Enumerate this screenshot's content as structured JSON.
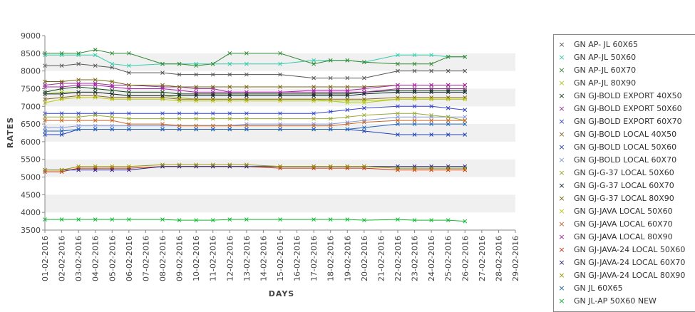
{
  "chart_data": {
    "type": "line",
    "xlabel": "DAYS",
    "ylabel": "RATES",
    "ylim": [
      3500,
      9000
    ],
    "yticks": [
      3500,
      4000,
      4500,
      5000,
      5500,
      6000,
      6500,
      7000,
      7500,
      8000,
      8500,
      9000
    ],
    "legend_position": "right",
    "grid": "alternating horizontal bands",
    "categories": [
      "01-02-2016",
      "02-02-2016",
      "03-02-2016",
      "04-02-2016",
      "05-02-2016",
      "06-02-2016",
      "07-02-2016",
      "08-02-2016",
      "09-02-2016",
      "10-02-2016",
      "11-02-2016",
      "12-02-2016",
      "13-02-2016",
      "14-02-2016",
      "15-02-2016",
      "16-02-2016",
      "17-02-2016",
      "18-02-2016",
      "19-02-2016",
      "20-02-2016",
      "21-02-2016",
      "22-02-2016",
      "23-02-2016",
      "24-02-2016",
      "25-02-2016",
      "26-02-2016",
      "27-02-2016",
      "28-02-2016",
      "29-02-2016"
    ],
    "series": [
      {
        "name": "GN AP- JL 60X65",
        "color": "#555555",
        "values": [
          8150,
          8150,
          8200,
          8150,
          8100,
          7950,
          null,
          7950,
          7900,
          7900,
          7900,
          7900,
          7900,
          null,
          7900,
          null,
          7800,
          7800,
          7800,
          7800,
          null,
          8000,
          8000,
          8000,
          8000,
          8000,
          null,
          null,
          null
        ]
      },
      {
        "name": "GN AP-JL 50X60",
        "color": "#33ccaa",
        "values": [
          8450,
          8450,
          8450,
          8450,
          8200,
          8150,
          null,
          8200,
          8200,
          8200,
          8200,
          8200,
          8200,
          null,
          8200,
          null,
          8300,
          8300,
          8300,
          8250,
          null,
          8450,
          8450,
          8450,
          8400,
          8400,
          null,
          null,
          null
        ]
      },
      {
        "name": "GN AP-JL 60X70",
        "color": "#338833",
        "values": [
          8500,
          8500,
          8500,
          8600,
          8500,
          8500,
          null,
          8200,
          8200,
          8150,
          8200,
          8500,
          8500,
          null,
          8500,
          null,
          8200,
          8300,
          8300,
          8250,
          null,
          8200,
          8200,
          8200,
          8400,
          8400,
          null,
          null,
          null
        ]
      },
      {
        "name": "GN AP-JL 80X90",
        "color": "#aacc22",
        "values": [
          7350,
          7400,
          7400,
          7400,
          7350,
          7300,
          null,
          7300,
          7250,
          7200,
          7200,
          7200,
          7200,
          null,
          7200,
          null,
          7200,
          7150,
          7100,
          7100,
          null,
          7200,
          7200,
          7200,
          7200,
          7200,
          null,
          null,
          null
        ]
      },
      {
        "name": "GN GJ-BOLD EXPORT 40X50",
        "color": "#114411",
        "values": [
          7400,
          7500,
          7550,
          7500,
          7450,
          7400,
          null,
          7400,
          7350,
          7350,
          7350,
          7350,
          7350,
          null,
          7350,
          null,
          7350,
          7350,
          7350,
          7400,
          null,
          7450,
          7450,
          7450,
          7450,
          7450,
          null,
          null,
          null
        ]
      },
      {
        "name": "GN GJ-BOLD EXPORT 50X60",
        "color": "#993399",
        "values": [
          7600,
          7650,
          7650,
          7650,
          7600,
          7600,
          null,
          7550,
          7550,
          7500,
          7500,
          7400,
          7400,
          null,
          7400,
          null,
          7400,
          7400,
          7400,
          7400,
          null,
          7500,
          7500,
          7500,
          7500,
          7500,
          null,
          null,
          null
        ]
      },
      {
        "name": "GN GJ-BOLD EXPORT 60X70",
        "color": "#3344cc",
        "values": [
          6800,
          6800,
          6800,
          6800,
          6800,
          6800,
          null,
          6800,
          6800,
          6800,
          6800,
          6800,
          6800,
          null,
          6800,
          null,
          6800,
          6850,
          6900,
          6950,
          null,
          7000,
          7000,
          7000,
          6950,
          6900,
          null,
          null,
          null
        ]
      },
      {
        "name": "GN GJ-BOLD LOCAL 40X50",
        "color": "#886622",
        "values": [
          7200,
          7250,
          7300,
          7300,
          7250,
          7250,
          null,
          7250,
          7200,
          7200,
          7200,
          7200,
          7200,
          null,
          7200,
          null,
          7200,
          7200,
          7200,
          7200,
          null,
          7250,
          7250,
          7250,
          7250,
          7250,
          null,
          null,
          null
        ]
      },
      {
        "name": "GN GJ-BOLD LOCAL 50X60",
        "color": "#2244bb",
        "values": [
          6200,
          6200,
          6350,
          6350,
          6350,
          6350,
          null,
          6350,
          6350,
          6350,
          6350,
          6350,
          6350,
          null,
          6350,
          null,
          6350,
          6350,
          6350,
          6300,
          null,
          6200,
          6200,
          6200,
          6200,
          6200,
          null,
          null,
          null
        ]
      },
      {
        "name": "GN GJ-BOLD LOCAL 60X70",
        "color": "#8899dd",
        "values": [
          6400,
          6400,
          6450,
          6450,
          6450,
          6450,
          null,
          6450,
          6450,
          6450,
          6450,
          6450,
          6500,
          null,
          6500,
          null,
          6500,
          6500,
          6550,
          6600,
          null,
          6700,
          6700,
          6700,
          6700,
          6700,
          null,
          null,
          null
        ]
      },
      {
        "name": "GN GJ-G-37 LOCAL 50X60",
        "color": "#99aa33",
        "values": [
          6700,
          6700,
          6700,
          6750,
          6700,
          6650,
          null,
          6650,
          6650,
          6650,
          6650,
          6650,
          6650,
          null,
          6650,
          null,
          6650,
          6650,
          6700,
          6750,
          null,
          6800,
          6800,
          6750,
          6700,
          6600,
          null,
          null,
          null
        ]
      },
      {
        "name": "GN GJ-G-37 LOCAL 60X70",
        "color": "#112233",
        "values": [
          7350,
          7350,
          7400,
          7400,
          7350,
          7300,
          null,
          7300,
          7300,
          7300,
          7300,
          7300,
          7300,
          null,
          7300,
          null,
          7300,
          7300,
          7300,
          7350,
          null,
          7400,
          7400,
          7400,
          7400,
          7400,
          null,
          null,
          null
        ]
      },
      {
        "name": "GN GJ-G-37 LOCAL 80X90",
        "color": "#776611",
        "values": [
          7700,
          7700,
          7750,
          7750,
          7700,
          7600,
          null,
          7600,
          7550,
          7550,
          7550,
          7550,
          7550,
          null,
          7550,
          null,
          7550,
          7550,
          7550,
          7550,
          null,
          7600,
          7600,
          7600,
          7600,
          7600,
          null,
          null,
          null
        ]
      },
      {
        "name": "GN GJ-JAVA LOCAL 50X60",
        "color": "#bbcc11",
        "values": [
          7100,
          7200,
          7250,
          7250,
          7200,
          7200,
          null,
          7200,
          7150,
          7150,
          7150,
          7150,
          7150,
          null,
          7150,
          null,
          7150,
          7150,
          7150,
          7150,
          null,
          7200,
          7200,
          7200,
          7200,
          7200,
          null,
          null,
          null
        ]
      },
      {
        "name": "GN GJ-JAVA LOCAL 60X70",
        "color": "#cc6622",
        "values": [
          6600,
          6600,
          6600,
          6600,
          6600,
          6500,
          null,
          6500,
          6450,
          6450,
          6450,
          6450,
          6450,
          null,
          6450,
          null,
          6450,
          6450,
          6500,
          6550,
          null,
          6600,
          6600,
          6600,
          6600,
          6600,
          null,
          null,
          null
        ]
      },
      {
        "name": "GN GJ-JAVA LOCAL 80X90",
        "color": "#aa22aa",
        "values": [
          7550,
          7550,
          7600,
          7600,
          7550,
          7500,
          null,
          7500,
          7450,
          7400,
          7400,
          7400,
          7400,
          null,
          7400,
          null,
          7450,
          7450,
          7450,
          7500,
          null,
          7600,
          7600,
          7600,
          7600,
          7600,
          null,
          null,
          null
        ]
      },
      {
        "name": "GN GJ-JAVA-24 LOCAL 50X60",
        "color": "#cc3311",
        "values": [
          5150,
          5150,
          5250,
          5250,
          5250,
          5250,
          null,
          5300,
          5300,
          5300,
          5300,
          5300,
          5300,
          null,
          5250,
          null,
          5250,
          5250,
          5250,
          5250,
          null,
          5200,
          5200,
          5200,
          5200,
          5200,
          null,
          null,
          null
        ]
      },
      {
        "name": "GN GJ-JAVA-24 LOCAL 60X70",
        "color": "#222288",
        "values": [
          5200,
          5200,
          5200,
          5200,
          5200,
          5200,
          null,
          5300,
          5300,
          5300,
          5300,
          5300,
          5300,
          null,
          5300,
          null,
          5300,
          5300,
          5300,
          5300,
          null,
          5300,
          5300,
          5300,
          5300,
          5300,
          null,
          null,
          null
        ]
      },
      {
        "name": "GN GJ-JAVA-24 LOCAL 80X90",
        "color": "#999900",
        "values": [
          5200,
          5200,
          5300,
          5300,
          5300,
          5300,
          null,
          5350,
          5350,
          5350,
          5350,
          5350,
          5350,
          null,
          5300,
          null,
          5300,
          5300,
          5300,
          5300,
          null,
          5250,
          5250,
          5250,
          5250,
          5250,
          null,
          null,
          null
        ]
      },
      {
        "name": "GN JL 60X65",
        "color": "#2266bb",
        "values": [
          6300,
          6300,
          6350,
          6350,
          6350,
          6350,
          null,
          6350,
          6350,
          6350,
          6350,
          6350,
          6350,
          null,
          6350,
          null,
          6350,
          6350,
          6350,
          6400,
          null,
          6500,
          6500,
          6500,
          6500,
          6500,
          null,
          null,
          null
        ]
      },
      {
        "name": "GN JL-AP 50X60 NEW",
        "color": "#11bb33",
        "values": [
          3800,
          3800,
          3800,
          3800,
          3800,
          3800,
          null,
          3800,
          3780,
          3780,
          3780,
          3800,
          3800,
          null,
          3800,
          null,
          3800,
          3800,
          3800,
          3780,
          null,
          3800,
          3780,
          3780,
          3780,
          3750,
          null,
          null,
          null
        ]
      }
    ]
  }
}
